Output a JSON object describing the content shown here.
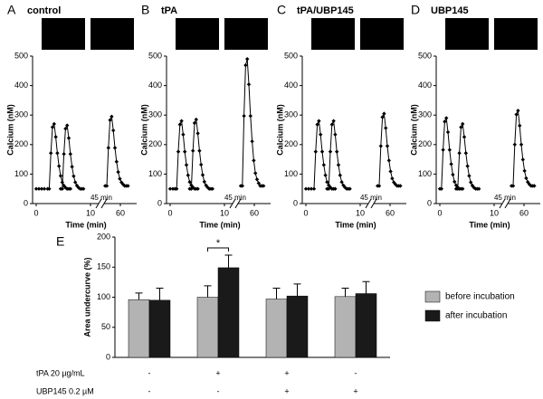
{
  "chart_data": [
    {
      "type": "line",
      "panel": "A",
      "title": "control",
      "ylabel": "Calcium (nM)",
      "xlabel": "Time (min)",
      "break_label": "45 min",
      "color": "#000000",
      "xlim": [
        0,
        63
      ],
      "xbreak": [
        11.5,
        57
      ],
      "xticks": [
        0,
        10,
        60
      ],
      "ylim": [
        0,
        500
      ],
      "yticks": [
        0,
        100,
        200,
        300,
        400,
        500
      ],
      "x": [
        0,
        0.5,
        1,
        1.5,
        2.1,
        2.4,
        2.7,
        3.0,
        3.3,
        3.6,
        3.9,
        4.2,
        4.5,
        4.8,
        5.1,
        5.4,
        5.7,
        6.0,
        6.3,
        null,
        4.5,
        4.8,
        5.1,
        5.4,
        5.7,
        6.0,
        6.3,
        6.6,
        6.9,
        7.2,
        7.5,
        7.8,
        8.1,
        8.4,
        8.7,
        null,
        57.2,
        57.5,
        57.8,
        58.1,
        58.4,
        58.7,
        59.0,
        59.3,
        59.6,
        59.9,
        60.2,
        60.5,
        60.8,
        61.1,
        61.4
      ],
      "values": [
        50,
        50,
        50,
        50,
        50,
        50,
        171,
        259,
        270,
        226,
        171,
        127,
        94,
        72,
        61,
        54,
        50,
        50,
        50,
        null,
        50,
        50,
        168,
        254,
        265,
        222,
        168,
        125,
        93,
        72,
        61,
        54,
        50,
        50,
        50,
        null,
        60,
        60,
        189,
        283,
        295,
        248,
        189,
        142,
        107,
        84,
        72,
        65,
        60,
        60,
        60
      ]
    },
    {
      "type": "line",
      "panel": "B",
      "title": "tPA",
      "ylabel": "Calcium (nM)",
      "xlabel": "Time (min)",
      "break_label": "45 min",
      "color": "#000000",
      "xlim": [
        0,
        63
      ],
      "xbreak": [
        11.5,
        57
      ],
      "xticks": [
        0,
        10,
        60
      ],
      "ylim": [
        0,
        500
      ],
      "yticks": [
        0,
        100,
        200,
        300,
        400,
        500
      ],
      "x": [
        0,
        0.5,
        0.9,
        1.2,
        1.5,
        1.8,
        2.1,
        2.4,
        2.7,
        3.0,
        3.3,
        3.6,
        3.9,
        4.2,
        4.5,
        4.8,
        5.1,
        null,
        3.6,
        3.9,
        4.2,
        4.5,
        4.8,
        5.1,
        5.4,
        5.7,
        6.0,
        6.3,
        6.6,
        6.9,
        7.2,
        7.5,
        7.8,
        null,
        57.5,
        57.8,
        58.1,
        58.4,
        58.7,
        59.0,
        59.3,
        59.6,
        59.9,
        60.2,
        60.5,
        60.8,
        61.1,
        61.4,
        61.7
      ],
      "values": [
        50,
        50,
        50,
        50,
        176,
        268,
        280,
        234,
        176,
        131,
        96,
        73,
        62,
        55,
        50,
        50,
        50,
        null,
        50,
        50,
        179,
        273,
        285,
        238,
        179,
        132,
        97,
        74,
        62,
        55,
        50,
        50,
        50,
        null,
        60,
        60,
        297,
        469,
        490,
        404,
        297,
        211,
        146,
        103,
        82,
        69,
        60,
        60,
        60
      ]
    },
    {
      "type": "line",
      "panel": "C",
      "title": "tPA/UBP145",
      "ylabel": "Calcium (nM)",
      "xlabel": "Time (min)",
      "break_label": "45 min",
      "color": "#000000",
      "xlim": [
        0,
        63
      ],
      "xbreak": [
        11.5,
        57
      ],
      "xticks": [
        0,
        10,
        60
      ],
      "ylim": [
        0,
        500
      ],
      "yticks": [
        0,
        100,
        200,
        300,
        400,
        500
      ],
      "x": [
        0,
        0.5,
        1.0,
        1.5,
        1.8,
        2.1,
        2.4,
        2.7,
        3.0,
        3.3,
        3.6,
        3.9,
        4.2,
        4.5,
        4.8,
        5.1,
        5.4,
        null,
        3.9,
        4.2,
        4.5,
        4.8,
        5.1,
        5.4,
        5.7,
        6.0,
        6.3,
        6.6,
        6.9,
        7.2,
        7.5,
        7.8,
        8.1,
        null,
        57.7,
        58.0,
        58.3,
        58.6,
        58.9,
        59.2,
        59.5,
        59.8,
        60.1,
        60.4,
        60.7,
        61.0,
        61.3,
        61.6,
        61.9
      ],
      "values": [
        50,
        50,
        50,
        50,
        176,
        268,
        280,
        234,
        176,
        131,
        96,
        73,
        62,
        55,
        50,
        50,
        50,
        null,
        50,
        50,
        176,
        268,
        280,
        234,
        176,
        131,
        96,
        73,
        62,
        55,
        50,
        50,
        50,
        null,
        60,
        60,
        195,
        293,
        305,
        256,
        195,
        146,
        109,
        85,
        72,
        65,
        60,
        60,
        60
      ]
    },
    {
      "type": "line",
      "panel": "D",
      "title": "UBP145",
      "ylabel": "Calcium (nM)",
      "xlabel": "Time (min)",
      "break_label": "45 min",
      "color": "#000000",
      "xlim": [
        0,
        63
      ],
      "xbreak": [
        11.5,
        57
      ],
      "xticks": [
        0,
        10,
        60
      ],
      "ylim": [
        0,
        500
      ],
      "yticks": [
        0,
        100,
        200,
        300,
        400,
        500
      ],
      "x": [
        0,
        0.3,
        0.6,
        0.9,
        1.2,
        1.5,
        1.8,
        2.1,
        2.4,
        2.7,
        3.0,
        3.3,
        3.6,
        3.9,
        4.2,
        null,
        3.0,
        3.3,
        3.6,
        3.9,
        4.2,
        4.5,
        4.8,
        5.1,
        5.4,
        5.7,
        6.0,
        6.3,
        6.6,
        6.9,
        7.2,
        null,
        57.7,
        58.0,
        58.3,
        58.6,
        58.9,
        59.2,
        59.5,
        59.8,
        60.1,
        60.4,
        60.7,
        61.0,
        61.3,
        61.6,
        61.9
      ],
      "values": [
        50,
        50,
        182,
        278,
        290,
        242,
        182,
        134,
        98,
        74,
        62,
        55,
        50,
        50,
        50,
        null,
        50,
        50,
        171,
        259,
        270,
        226,
        171,
        127,
        94,
        72,
        61,
        54,
        50,
        50,
        50,
        null,
        60,
        60,
        200,
        302,
        315,
        264,
        200,
        149,
        111,
        86,
        73,
        65,
        60,
        60,
        60
      ]
    },
    {
      "type": "bar",
      "panel": "E",
      "ylabel": "Area undercurve (%)",
      "ylim": [
        0,
        200
      ],
      "yticks": [
        0,
        50,
        100,
        150,
        200
      ],
      "legend": "right",
      "categories": [
        null,
        null,
        null,
        null
      ],
      "series": [
        {
          "name": "before incubation",
          "color": "#b3b3b3",
          "values": [
            96,
            100,
            97,
            101
          ],
          "errors": [
            11,
            19,
            18,
            14
          ]
        },
        {
          "name": "after incubation",
          "color": "#1a1a1a",
          "values": [
            95,
            149,
            102,
            106
          ],
          "errors": [
            20,
            21,
            20,
            20
          ]
        }
      ],
      "significance": [
        {
          "label": "*",
          "category": 1
        }
      ],
      "conditions": [
        {
          "label": "tPA 20 µg/mL",
          "values": [
            "-",
            "+",
            "+",
            "-"
          ]
        },
        {
          "label": "UBP145 0.2 µM",
          "values": [
            "-",
            "-",
            "+",
            "+"
          ]
        }
      ]
    }
  ]
}
